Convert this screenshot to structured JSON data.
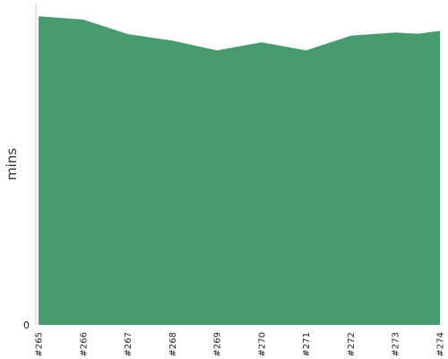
{
  "chart_data": {
    "type": "area",
    "title": "",
    "xlabel": "",
    "ylabel": "mins",
    "categories": [
      "#265",
      "#266",
      "#267",
      "#268",
      "#269",
      "#270",
      "#271",
      "#272",
      "#273",
      "#274"
    ],
    "series": [
      {
        "values": [
          95.0,
          94.0,
          89.5,
          87.5,
          84.5,
          87.0,
          84.5,
          89.0,
          90.0,
          90.5
        ]
      }
    ],
    "knots": [
      {
        "x": 8.5,
        "y": 89.6
      }
    ],
    "y_ticks": [
      0
    ],
    "ylim": [
      0,
      100
    ],
    "grid": false,
    "legend": "none",
    "colors": {
      "area": "#469c6e",
      "axis": "#cccccc"
    }
  }
}
